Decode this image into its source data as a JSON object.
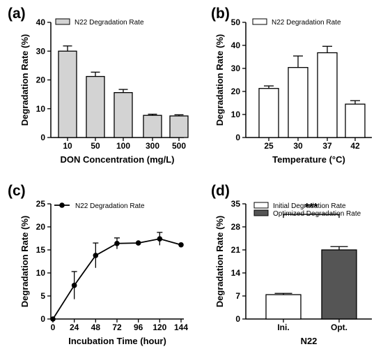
{
  "chart_data": [
    {
      "panel": "(a)",
      "type": "bar",
      "categories": [
        "10",
        "50",
        "100",
        "300",
        "500"
      ],
      "series": [
        {
          "name": "N22 Degradation Rate",
          "values": [
            30.0,
            21.2,
            15.6,
            7.7,
            7.5
          ],
          "errors": [
            1.8,
            1.5,
            1.1,
            0.4,
            0.4
          ]
        }
      ],
      "xlabel": "DON Concentration (mg/L)",
      "ylabel": "Degradation Rate (%)",
      "ylim": [
        0,
        40
      ],
      "yticks": [
        "0",
        "10",
        "20",
        "30",
        "40"
      ],
      "bar_color": "#d3d3d3",
      "legend": "top-left",
      "grid": false
    },
    {
      "panel": "(b)",
      "type": "bar",
      "categories": [
        "25",
        "30",
        "37",
        "42"
      ],
      "series": [
        {
          "name": "N22 Degradation Rate",
          "values": [
            21.3,
            30.4,
            36.8,
            14.5
          ],
          "errors": [
            1.1,
            5.0,
            2.8,
            1.5
          ]
        }
      ],
      "xlabel": "Temperature (°C)",
      "ylabel": "Degradation Rate (%)",
      "ylim": [
        0,
        50
      ],
      "yticks": [
        "0",
        "10",
        "20",
        "30",
        "40",
        "50"
      ],
      "bar_color": "#ffffff",
      "legend": "top-left",
      "grid": false
    },
    {
      "panel": "(c)",
      "type": "line",
      "x": [
        0,
        24,
        48,
        72,
        96,
        120,
        144
      ],
      "xticks": [
        "0",
        "24",
        "48",
        "72",
        "96",
        "120",
        "144"
      ],
      "series": [
        {
          "name": "N22 Degradation Rate",
          "values": [
            0,
            7.3,
            13.8,
            16.4,
            16.5,
            17.4,
            16.1
          ],
          "errors": [
            0,
            3.0,
            2.7,
            1.2,
            0,
            1.4,
            0
          ]
        }
      ],
      "xlabel": "Incubation Time (hour)",
      "ylabel": "Degradation Rate (%)",
      "xlim": [
        0,
        144
      ],
      "ylim": [
        0,
        25
      ],
      "yticks": [
        "0",
        "5",
        "10",
        "15",
        "20",
        "25"
      ],
      "line_color": "#000000",
      "legend": "top-left",
      "grid": false
    },
    {
      "panel": "(d)",
      "type": "bar",
      "categories": [
        "Ini.",
        "Opt."
      ],
      "series": [
        {
          "name": "Initial Degradation Rate",
          "values": [
            7.4,
            null
          ],
          "errors": [
            0.4,
            null
          ],
          "color": "#ffffff"
        },
        {
          "name": "Optimized Degradation Rate",
          "values": [
            null,
            21.0
          ],
          "errors": [
            null,
            1.0
          ],
          "color": "#555555"
        }
      ],
      "xlabel": "N22",
      "ylabel": "Degradation Rate (%)",
      "ylim": [
        0,
        35
      ],
      "yticks": [
        "0",
        "7",
        "14",
        "21",
        "28",
        "35"
      ],
      "annotation": "***",
      "legend": "top-left",
      "grid": false
    }
  ]
}
